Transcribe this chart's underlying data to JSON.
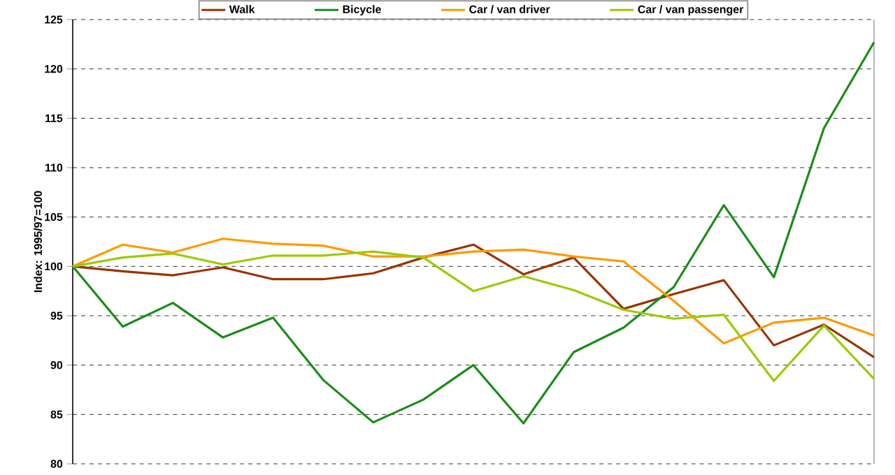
{
  "chart_data": {
    "type": "line",
    "ylabel": "Index: 1995/97=100",
    "categories": [
      null,
      null,
      null,
      null,
      null,
      null,
      null,
      null,
      null,
      null,
      null,
      null,
      null,
      null,
      null,
      null,
      null
    ],
    "series": [
      {
        "name": "Walk",
        "color": "#993300",
        "values": [
          100,
          99.5,
          99.1,
          99.9,
          98.7,
          98.7,
          99.3,
          100.9,
          102.2,
          99.2,
          100.9,
          95.7,
          97.2,
          98.6,
          92.0,
          94.1,
          90.8
        ]
      },
      {
        "name": "Bicycle",
        "color": "#1a8c1a",
        "values": [
          100,
          93.9,
          96.3,
          92.8,
          94.8,
          88.5,
          84.2,
          86.5,
          90.0,
          84.1,
          91.3,
          93.8,
          97.9,
          106.2,
          98.9,
          114.0,
          122.7
        ]
      },
      {
        "name": "Car / van driver",
        "color": "#ff9900",
        "values": [
          100,
          102.2,
          101.4,
          102.8,
          102.3,
          102.1,
          101.0,
          101.0,
          101.5,
          101.7,
          101.0,
          100.5,
          96.5,
          92.2,
          94.3,
          94.8,
          93.0
        ]
      },
      {
        "name": "Car / van passenger",
        "color": "#99cc00",
        "values": [
          100,
          100.9,
          101.3,
          100.2,
          101.1,
          101.1,
          101.5,
          100.9,
          97.5,
          99.0,
          97.6,
          95.6,
          94.7,
          95.1,
          88.4,
          94.0,
          88.6
        ]
      }
    ],
    "ylim": [
      80,
      125
    ],
    "yticks": [
      80,
      85,
      90,
      95,
      100,
      105,
      110,
      115,
      120,
      125
    ],
    "grid": "y",
    "legend": "top",
    "marker": "none",
    "line_style": "solid"
  }
}
